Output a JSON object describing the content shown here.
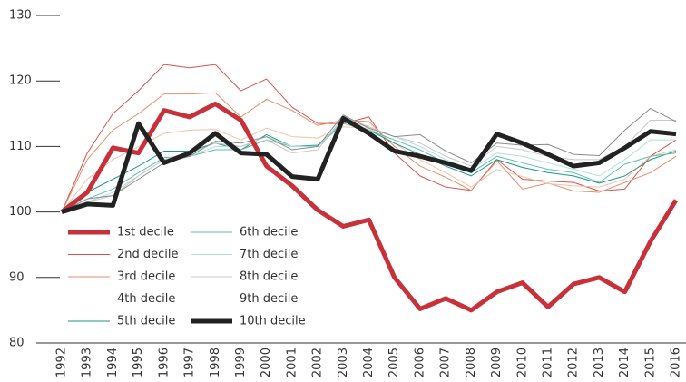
{
  "chart_data": {
    "type": "line",
    "categories": [
      "1992",
      "1993",
      "1994",
      "1995",
      "1996",
      "1997",
      "1998",
      "1999",
      "2000",
      "2001",
      "2002",
      "2003",
      "2004",
      "2005",
      "2006",
      "2007",
      "2008",
      "2009",
      "2010",
      "2011",
      "2012",
      "2013",
      "2014",
      "2015",
      "2016"
    ],
    "ylim": [
      80,
      130
    ],
    "yticks": [
      80,
      90,
      100,
      110,
      120,
      130
    ],
    "series": [
      {
        "name": "1st decile",
        "color": "#c8313a",
        "line_width": 5,
        "values": [
          100,
          103,
          109.8,
          109,
          115.5,
          114.5,
          116.5,
          114,
          107,
          104,
          100.3,
          97.8,
          98.8,
          90,
          85.2,
          86.8,
          85,
          87.8,
          89.2,
          85.5,
          89,
          90,
          87.8,
          95.5,
          101.8
        ]
      },
      {
        "name": "2nd decile",
        "color": "#d9534f",
        "line_width": 1,
        "values": [
          100,
          109,
          115,
          118.5,
          122.5,
          122,
          122.5,
          118.5,
          120.3,
          116,
          113.5,
          113.5,
          114.5,
          109,
          105.5,
          103.8,
          103.3,
          108,
          105,
          104.7,
          104.5,
          103.2,
          103.5,
          108.5,
          111
        ]
      },
      {
        "name": "3rd decile",
        "color": "#e58f6f",
        "line_width": 1,
        "values": [
          100,
          108,
          112.5,
          115,
          118,
          118,
          118.2,
          114.5,
          117.2,
          115.5,
          113.2,
          114,
          113.8,
          110,
          107,
          105.3,
          103.3,
          107.8,
          103.5,
          104.4,
          103.2,
          103,
          104.5,
          106,
          108.5
        ]
      },
      {
        "name": "4th decile",
        "color": "#f2c2a9",
        "line_width": 1,
        "values": [
          100,
          105,
          108,
          110,
          112,
          112.5,
          112.6,
          111,
          112.8,
          111.5,
          111.3,
          113,
          112.8,
          110.5,
          108,
          106,
          103.8,
          106.5,
          105.4,
          104.3,
          104,
          103.8,
          105,
          108.5,
          109.5
        ]
      },
      {
        "name": "5th decile",
        "color": "#1a9987",
        "line_width": 1,
        "values": [
          100,
          103,
          105,
          107,
          109.3,
          109.3,
          110.5,
          109.5,
          111.8,
          110,
          110.2,
          113.8,
          112.5,
          110.5,
          108.8,
          107,
          105.5,
          108,
          106.8,
          106,
          105.5,
          104.4,
          105.5,
          108,
          109.3
        ]
      },
      {
        "name": "6th decile",
        "color": "#5cbfae",
        "line_width": 1,
        "values": [
          100,
          102,
          103.5,
          106,
          108.3,
          108.5,
          109.5,
          109.5,
          111,
          110,
          110,
          113.5,
          112.5,
          111,
          109.5,
          107.5,
          106,
          108.5,
          107.5,
          106.5,
          106,
          104.5,
          107.3,
          108.5,
          109
        ]
      },
      {
        "name": "7th decile",
        "color": "#b3e0d8",
        "line_width": 1,
        "values": [
          100,
          101.5,
          103,
          105.5,
          108,
          108.5,
          110,
          110,
          111.5,
          110,
          110,
          114,
          113,
          111.5,
          110,
          108,
          106.5,
          109,
          108.5,
          107.5,
          106.5,
          105.5,
          108,
          111,
          111
        ]
      },
      {
        "name": "8th decile",
        "color": "#c8c8c8",
        "line_width": 1,
        "values": [
          100,
          101.5,
          102.5,
          105.5,
          108,
          109,
          110.5,
          110,
          111,
          109,
          109.5,
          114.5,
          113,
          111.5,
          110.5,
          108.5,
          107,
          110,
          109.5,
          108.5,
          108,
          108,
          110,
          114,
          114
        ]
      },
      {
        "name": "9th decile",
        "color": "#8a8a8a",
        "line_width": 1,
        "values": [
          100,
          102,
          102.5,
          105,
          107.5,
          108.5,
          110.8,
          110.5,
          111.5,
          109.5,
          110,
          114.8,
          112.8,
          111.5,
          111.8,
          109.3,
          107.5,
          110.5,
          110.2,
          110.3,
          108.8,
          108.6,
          112.5,
          115.8,
          113.8
        ]
      },
      {
        "name": "10th decile",
        "color": "#222222",
        "line_width": 5,
        "values": [
          100,
          101.2,
          101,
          113.5,
          107.5,
          109,
          112,
          109,
          108.8,
          105.4,
          105,
          114.3,
          112,
          109.3,
          108.5,
          107.5,
          106.3,
          111.9,
          110.5,
          108.8,
          107,
          107.5,
          109.8,
          112.3,
          111.9
        ]
      }
    ]
  }
}
